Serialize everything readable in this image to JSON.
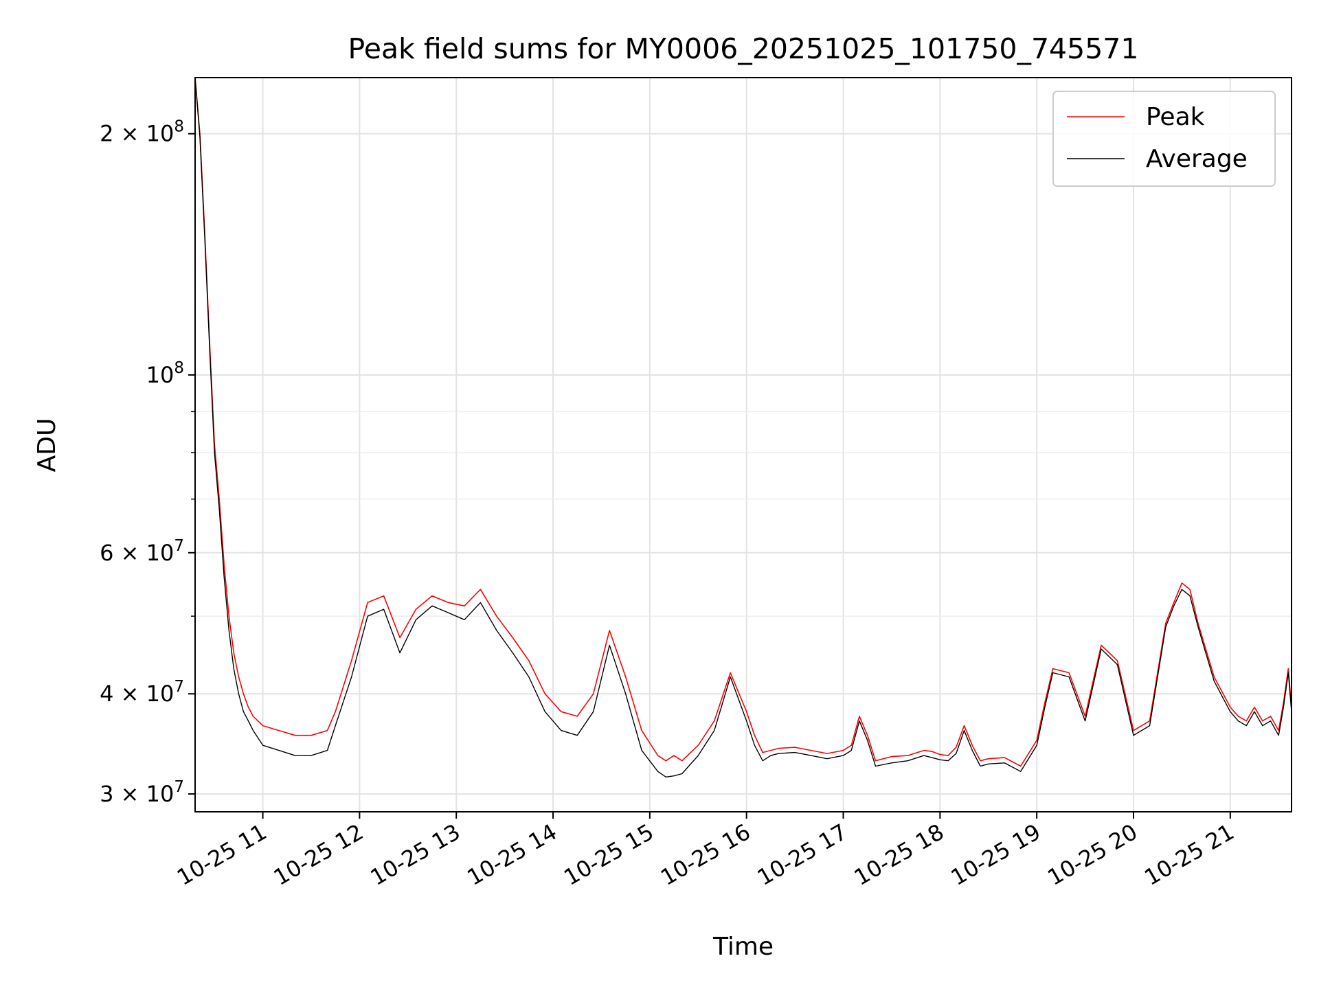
{
  "chart_data": {
    "type": "line",
    "title": "Peak field sums for MY0006_20251025_101750_745571",
    "xlabel": "Time",
    "ylabel": "ADU",
    "y_scale": "log",
    "ylim": [
      28500000,
      235000000
    ],
    "xlim": [
      "2025-10-25 10:18",
      "2025-10-25 21:38"
    ],
    "grid": true,
    "legend_position": "top-right",
    "x_tick_labels": [
      "10-25 11",
      "10-25 12",
      "10-25 13",
      "10-25 14",
      "10-25 15",
      "10-25 16",
      "10-25 17",
      "10-25 18",
      "10-25 19",
      "10-25 20",
      "10-25 21"
    ],
    "x_tick_values": [
      "2025-10-25 11:00",
      "2025-10-25 12:00",
      "2025-10-25 13:00",
      "2025-10-25 14:00",
      "2025-10-25 15:00",
      "2025-10-25 16:00",
      "2025-10-25 17:00",
      "2025-10-25 18:00",
      "2025-10-25 19:00",
      "2025-10-25 20:00",
      "2025-10-25 21:00"
    ],
    "y_major_ticks": [
      {
        "value": 30000000,
        "coef": "3",
        "exp": "7"
      },
      {
        "value": 40000000,
        "coef": "4",
        "exp": "7"
      },
      {
        "value": 60000000,
        "coef": "6",
        "exp": "7"
      },
      {
        "value": 100000000,
        "coef": "",
        "exp": "8"
      },
      {
        "value": 200000000,
        "coef": "2",
        "exp": "8"
      }
    ],
    "y_minor_ticks": [
      50000000,
      70000000,
      80000000,
      90000000
    ],
    "series": [
      {
        "name": "Peak",
        "color": "#ff0000",
        "x": [
          "2025-10-25 10:18",
          "2025-10-25 10:21",
          "2025-10-25 10:24",
          "2025-10-25 10:27",
          "2025-10-25 10:30",
          "2025-10-25 10:33",
          "2025-10-25 10:36",
          "2025-10-25 10:39",
          "2025-10-25 10:42",
          "2025-10-25 10:45",
          "2025-10-25 10:48",
          "2025-10-25 10:51",
          "2025-10-25 10:54",
          "2025-10-25 11:00",
          "2025-10-25 11:10",
          "2025-10-25 11:20",
          "2025-10-25 11:30",
          "2025-10-25 11:40",
          "2025-10-25 11:45",
          "2025-10-25 11:55",
          "2025-10-25 12:05",
          "2025-10-25 12:15",
          "2025-10-25 12:25",
          "2025-10-25 12:35",
          "2025-10-25 12:45",
          "2025-10-25 12:55",
          "2025-10-25 13:05",
          "2025-10-25 13:15",
          "2025-10-25 13:25",
          "2025-10-25 13:35",
          "2025-10-25 13:45",
          "2025-10-25 13:55",
          "2025-10-25 14:05",
          "2025-10-25 14:15",
          "2025-10-25 14:25",
          "2025-10-25 14:35",
          "2025-10-25 14:45",
          "2025-10-25 14:55",
          "2025-10-25 15:05",
          "2025-10-25 15:10",
          "2025-10-25 15:15",
          "2025-10-25 15:20",
          "2025-10-25 15:30",
          "2025-10-25 15:40",
          "2025-10-25 15:50",
          "2025-10-25 16:00",
          "2025-10-25 16:05",
          "2025-10-25 16:10",
          "2025-10-25 16:15",
          "2025-10-25 16:20",
          "2025-10-25 16:30",
          "2025-10-25 16:40",
          "2025-10-25 16:50",
          "2025-10-25 17:00",
          "2025-10-25 17:05",
          "2025-10-25 17:10",
          "2025-10-25 17:15",
          "2025-10-25 17:20",
          "2025-10-25 17:30",
          "2025-10-25 17:40",
          "2025-10-25 17:50",
          "2025-10-25 17:55",
          "2025-10-25 18:00",
          "2025-10-25 18:05",
          "2025-10-25 18:10",
          "2025-10-25 18:15",
          "2025-10-25 18:20",
          "2025-10-25 18:25",
          "2025-10-25 18:30",
          "2025-10-25 18:40",
          "2025-10-25 18:50",
          "2025-10-25 19:00",
          "2025-10-25 19:05",
          "2025-10-25 19:10",
          "2025-10-25 19:20",
          "2025-10-25 19:30",
          "2025-10-25 19:40",
          "2025-10-25 19:50",
          "2025-10-25 20:00",
          "2025-10-25 20:10",
          "2025-10-25 20:20",
          "2025-10-25 20:25",
          "2025-10-25 20:30",
          "2025-10-25 20:35",
          "2025-10-25 20:40",
          "2025-10-25 20:50",
          "2025-10-25 21:00",
          "2025-10-25 21:05",
          "2025-10-25 21:10",
          "2025-10-25 21:15",
          "2025-10-25 21:20",
          "2025-10-25 21:25",
          "2025-10-25 21:30",
          "2025-10-25 21:33",
          "2025-10-25 21:36",
          "2025-10-25 21:38"
        ],
        "y": [
          235000000,
          200000000,
          150000000,
          110000000,
          82000000,
          70000000,
          58000000,
          50000000,
          45000000,
          42000000,
          40000000,
          38500000,
          37500000,
          36500000,
          36000000,
          35500000,
          35500000,
          36000000,
          38000000,
          44000000,
          52000000,
          53000000,
          47000000,
          51000000,
          53000000,
          52000000,
          51500000,
          54000000,
          50000000,
          47000000,
          44000000,
          40000000,
          38000000,
          37500000,
          40000000,
          48000000,
          42000000,
          36000000,
          33500000,
          33000000,
          33500000,
          33000000,
          34500000,
          37000000,
          42500000,
          38000000,
          35500000,
          33800000,
          34000000,
          34200000,
          34300000,
          34000000,
          33700000,
          34000000,
          34500000,
          37500000,
          35500000,
          33000000,
          33400000,
          33500000,
          34000000,
          33900000,
          33600000,
          33500000,
          34300000,
          36500000,
          34500000,
          33000000,
          33200000,
          33300000,
          32500000,
          35000000,
          39000000,
          43000000,
          42500000,
          37500000,
          46000000,
          44000000,
          36000000,
          37000000,
          49000000,
          52000000,
          55000000,
          54000000,
          49000000,
          42000000,
          38500000,
          37500000,
          37000000,
          38500000,
          37000000,
          37500000,
          36000000,
          39000000,
          43000000,
          38500000
        ]
      },
      {
        "name": "Average",
        "color": "#000000",
        "x": [
          "2025-10-25 10:18",
          "2025-10-25 10:21",
          "2025-10-25 10:24",
          "2025-10-25 10:27",
          "2025-10-25 10:30",
          "2025-10-25 10:33",
          "2025-10-25 10:36",
          "2025-10-25 10:39",
          "2025-10-25 10:42",
          "2025-10-25 10:45",
          "2025-10-25 10:48",
          "2025-10-25 10:51",
          "2025-10-25 10:54",
          "2025-10-25 11:00",
          "2025-10-25 11:10",
          "2025-10-25 11:20",
          "2025-10-25 11:30",
          "2025-10-25 11:40",
          "2025-10-25 11:45",
          "2025-10-25 11:55",
          "2025-10-25 12:05",
          "2025-10-25 12:15",
          "2025-10-25 12:25",
          "2025-10-25 12:35",
          "2025-10-25 12:45",
          "2025-10-25 12:55",
          "2025-10-25 13:05",
          "2025-10-25 13:15",
          "2025-10-25 13:25",
          "2025-10-25 13:35",
          "2025-10-25 13:45",
          "2025-10-25 13:55",
          "2025-10-25 14:05",
          "2025-10-25 14:15",
          "2025-10-25 14:25",
          "2025-10-25 14:35",
          "2025-10-25 14:45",
          "2025-10-25 14:55",
          "2025-10-25 15:05",
          "2025-10-25 15:10",
          "2025-10-25 15:15",
          "2025-10-25 15:20",
          "2025-10-25 15:30",
          "2025-10-25 15:40",
          "2025-10-25 15:50",
          "2025-10-25 16:00",
          "2025-10-25 16:05",
          "2025-10-25 16:10",
          "2025-10-25 16:15",
          "2025-10-25 16:20",
          "2025-10-25 16:30",
          "2025-10-25 16:40",
          "2025-10-25 16:50",
          "2025-10-25 17:00",
          "2025-10-25 17:05",
          "2025-10-25 17:10",
          "2025-10-25 17:15",
          "2025-10-25 17:20",
          "2025-10-25 17:30",
          "2025-10-25 17:40",
          "2025-10-25 17:50",
          "2025-10-25 17:55",
          "2025-10-25 18:00",
          "2025-10-25 18:05",
          "2025-10-25 18:10",
          "2025-10-25 18:15",
          "2025-10-25 18:20",
          "2025-10-25 18:25",
          "2025-10-25 18:30",
          "2025-10-25 18:40",
          "2025-10-25 18:50",
          "2025-10-25 19:00",
          "2025-10-25 19:05",
          "2025-10-25 19:10",
          "2025-10-25 19:20",
          "2025-10-25 19:30",
          "2025-10-25 19:40",
          "2025-10-25 19:50",
          "2025-10-25 20:00",
          "2025-10-25 20:10",
          "2025-10-25 20:20",
          "2025-10-25 20:25",
          "2025-10-25 20:30",
          "2025-10-25 20:35",
          "2025-10-25 20:40",
          "2025-10-25 20:50",
          "2025-10-25 21:00",
          "2025-10-25 21:05",
          "2025-10-25 21:10",
          "2025-10-25 21:15",
          "2025-10-25 21:20",
          "2025-10-25 21:25",
          "2025-10-25 21:30",
          "2025-10-25 21:33",
          "2025-10-25 21:36",
          "2025-10-25 21:38"
        ],
        "y": [
          235000000,
          198000000,
          148000000,
          108000000,
          80000000,
          68000000,
          56000000,
          48000000,
          43000000,
          40000000,
          38000000,
          37000000,
          36000000,
          34500000,
          34000000,
          33500000,
          33500000,
          34000000,
          36500000,
          42000000,
          50000000,
          51000000,
          45000000,
          49500000,
          51500000,
          50500000,
          49500000,
          52000000,
          48000000,
          45000000,
          42000000,
          38000000,
          36000000,
          35500000,
          38000000,
          46000000,
          40000000,
          34000000,
          32000000,
          31500000,
          31600000,
          31800000,
          33500000,
          36000000,
          42000000,
          37000000,
          34500000,
          33000000,
          33500000,
          33700000,
          33800000,
          33500000,
          33200000,
          33500000,
          34000000,
          37000000,
          35000000,
          32500000,
          32800000,
          33000000,
          33500000,
          33300000,
          33100000,
          33000000,
          33700000,
          36000000,
          34000000,
          32500000,
          32700000,
          32800000,
          32000000,
          34500000,
          38500000,
          42500000,
          42000000,
          37000000,
          45500000,
          43500000,
          35500000,
          36500000,
          48500000,
          51500000,
          54000000,
          53000000,
          48500000,
          41500000,
          38000000,
          37000000,
          36500000,
          38000000,
          36500000,
          37000000,
          35500000,
          38500000,
          42500000,
          38000000
        ]
      }
    ]
  }
}
